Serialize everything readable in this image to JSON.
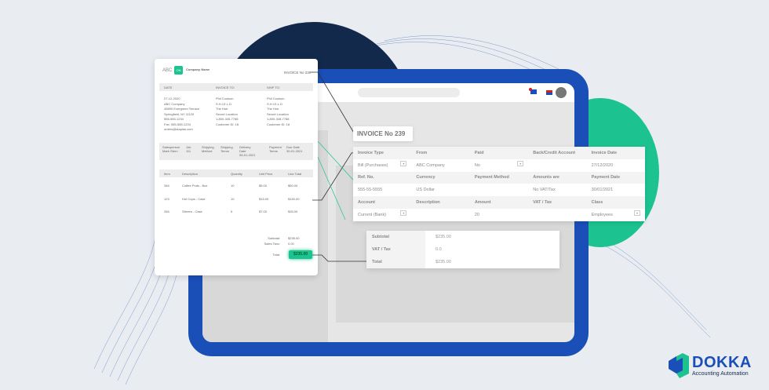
{
  "colors": {
    "brand_blue": "#1a4fb8",
    "brand_green": "#1cc391",
    "navy": "#13294b"
  },
  "paper": {
    "logo_text": "ABC",
    "logo_badge": "ON",
    "company": "Company Name",
    "invoice_no": "INVOICE No 239",
    "headers": [
      "DATE",
      "INVOICE TO:",
      "SHIP TO:"
    ],
    "from_lines": [
      "27-12-2020",
      "ABC Company",
      "45690 Evergreen Terrace",
      "Springfield, NY 11120",
      "555-555-1234",
      "Fax: 555-555-1233",
      "orders@staplas.com"
    ],
    "to_lines": [
      "Phil Coulson",
      "S.H.I.E.L.D",
      "The Hub",
      "Secret Location",
      "1-800-345-7788",
      "Customer ID: 18"
    ],
    "ship_lines": [
      "Phil Coulson",
      "S.H.I.E.L.D",
      "The Hub",
      "Secret Location",
      "1-800-345-7788",
      "Customer ID: 18"
    ],
    "meta": [
      [
        "Salesperson",
        "Mark Stern"
      ],
      [
        "Job",
        "111"
      ],
      [
        "Shipping",
        "Method"
      ],
      [
        "Shipping",
        "Terms"
      ],
      [
        "Delivery",
        "Date",
        "05-01-2021"
      ],
      [
        "Payment",
        "Terms"
      ],
      [
        "Due Date",
        "30-01-2021"
      ]
    ],
    "item_headers": [
      "Item",
      "Description",
      "Quantity",
      "Unit Price",
      "Line Total"
    ],
    "items": [
      [
        "346",
        "Coffee Pods - Box",
        "10",
        "$5.00",
        "$50.00"
      ],
      [
        "123",
        "Hot Cups - Case",
        "10",
        "$15.00",
        "$150.00"
      ],
      [
        "346",
        "Stirrers - Case",
        "5",
        "$7.00",
        "$35.00"
      ]
    ],
    "subtotal_label": "Subtotal:",
    "subtotal": "$235.00",
    "tax_label": "Sales Taxc:",
    "tax": "0.00",
    "total_label": "Total:",
    "total": "$235.00"
  },
  "invoice_label": "INVOICE No 239",
  "form": {
    "rows": [
      {
        "type": "label",
        "cells": [
          "Invoice Type",
          "From",
          "Paid",
          "Back/Credit Account",
          "Invoice Date"
        ]
      },
      {
        "type": "value",
        "cells": [
          "Bill (Purchases)",
          "ABC Company",
          "No",
          "",
          "27/12/2020"
        ],
        "dropdowns": [
          0,
          2
        ]
      },
      {
        "type": "label",
        "cells": [
          "Ref. No.",
          "Currency",
          "Payment Method",
          "Amounts are",
          "Payment Date"
        ]
      },
      {
        "type": "value",
        "cells": [
          "555-55-5555",
          "US Dollar",
          "",
          "No VAT/Tax",
          "30/01/2021"
        ],
        "dropdowns": []
      },
      {
        "type": "label",
        "cells": [
          "Account",
          "Description",
          "Amount",
          "VAT / Tax",
          "Class"
        ]
      },
      {
        "type": "value",
        "cells": [
          "Current (Bank)",
          "",
          "20",
          "",
          "Employees"
        ],
        "dropdowns": [
          0,
          4
        ]
      }
    ]
  },
  "totals": [
    {
      "label": "Subtotal",
      "value": "$235.00"
    },
    {
      "label": "VAT / Tax",
      "value": "0.0"
    },
    {
      "label": "Total",
      "value": "$235.00"
    }
  ],
  "brand": {
    "name": "DOKKA",
    "tagline": "Accounting Automation"
  }
}
